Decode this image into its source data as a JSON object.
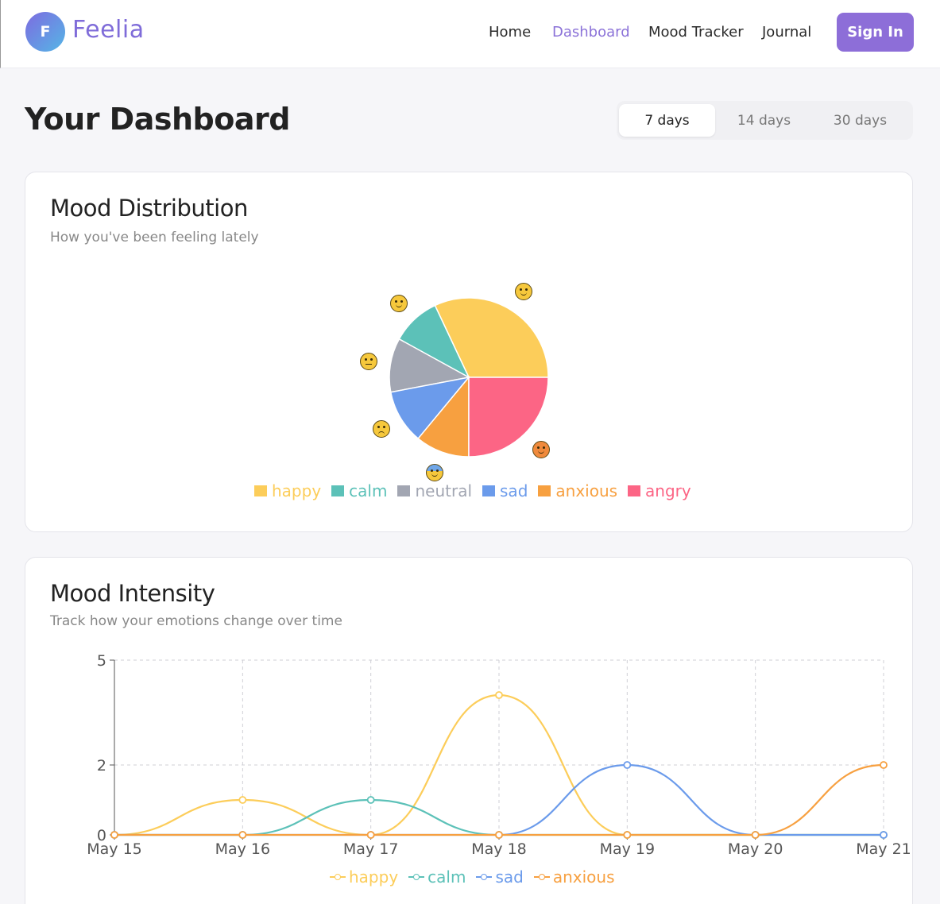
{
  "header": {
    "logo_letter": "F",
    "brand": "Feelia",
    "nav": [
      "Home",
      "Dashboard",
      "Mood Tracker",
      "Journal"
    ],
    "active_nav": "Dashboard",
    "sign_in": "Sign In"
  },
  "page": {
    "title": "Your Dashboard",
    "ranges": [
      "7 days",
      "14 days",
      "30 days"
    ],
    "active_range": "7 days"
  },
  "distribution": {
    "title": "Mood Distribution",
    "subtitle": "How you've been feeling lately"
  },
  "intensity": {
    "title": "Mood Intensity",
    "subtitle": "Track how your emotions change over time"
  },
  "colors": {
    "happy": "#fccd5a",
    "calm": "#5cc1b8",
    "neutral": "#a2a6b2",
    "sad": "#6b9beb",
    "anxious": "#f7a040",
    "angry": "#fc6585",
    "accent": "#8d6ed8"
  },
  "chart_data": [
    {
      "type": "pie",
      "categories": [
        "happy",
        "calm",
        "neutral",
        "sad",
        "anxious",
        "angry"
      ],
      "values": [
        32,
        10,
        11,
        11,
        11,
        25
      ],
      "slice_icons": [
        "smiling-face-icon",
        "relieved-face-icon",
        "neutral-face-icon",
        "sad-face-icon",
        "anxious-face-icon",
        "angry-face-icon"
      ],
      "legend": "bottom"
    },
    {
      "type": "line",
      "x": [
        "May 15",
        "May 16",
        "May 17",
        "May 18",
        "May 19",
        "May 20",
        "May 21"
      ],
      "ylim": [
        0,
        5
      ],
      "yticks": [
        0,
        2,
        5
      ],
      "grid": true,
      "series": [
        {
          "name": "happy",
          "values": [
            0,
            1,
            0,
            4,
            0,
            0,
            0
          ]
        },
        {
          "name": "calm",
          "values": [
            0,
            0,
            1,
            0,
            0,
            0,
            0
          ]
        },
        {
          "name": "sad",
          "values": [
            0,
            0,
            0,
            0,
            2,
            0,
            0
          ]
        },
        {
          "name": "anxious",
          "values": [
            0,
            0,
            0,
            0,
            0,
            0,
            2
          ]
        }
      ],
      "legend": "bottom"
    }
  ]
}
